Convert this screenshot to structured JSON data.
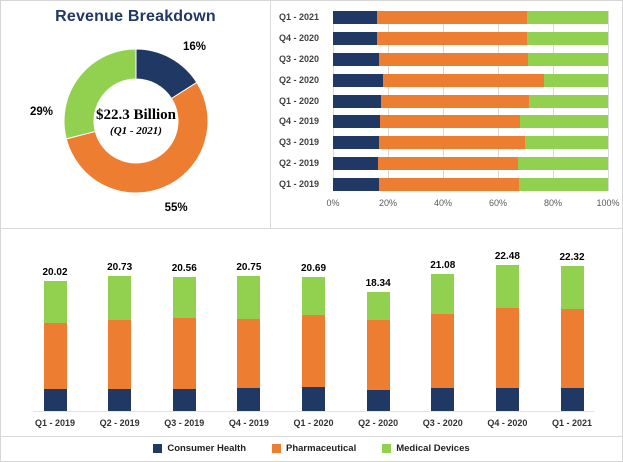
{
  "palette": {
    "consumer_health": "#1F3864",
    "pharmaceutical": "#ED7D31",
    "medical_devices": "#92D050",
    "title_color": "#1F3864",
    "grid_color": "#d9d9d9"
  },
  "chart_data": [
    {
      "type": "pie",
      "subtype": "donut",
      "title": "Revenue Breakdown",
      "center_label": "$22.3 Billion",
      "center_sublabel": "(Q1 - 2021)",
      "labels": [
        "Consumer Health",
        "Pharmaceutical",
        "Medical Devices"
      ],
      "values": [
        16,
        55,
        29
      ],
      "slice_labels": [
        "16%",
        "55%",
        "29%"
      ],
      "colors": [
        "#1F3864",
        "#ED7D31",
        "#92D050"
      ],
      "label_angles_deg": [
        38,
        155,
        276
      ]
    },
    {
      "type": "bar",
      "orientation": "horizontal",
      "stacking": "percent",
      "categories": [
        "Q1 - 2021",
        "Q4 - 2020",
        "Q3 - 2020",
        "Q2 - 2020",
        "Q1 - 2020",
        "Q4 - 2019",
        "Q3 - 2019",
        "Q2 - 2019",
        "Q1 - 2019"
      ],
      "series": [
        {
          "name": "Consumer Health",
          "color": "#1F3864",
          "values": [
            15.9,
            15.9,
            16.7,
            18.0,
            17.5,
            17.2,
            16.8,
            16.5,
            16.6
          ]
        },
        {
          "name": "Pharmaceutical",
          "color": "#ED7D31",
          "values": [
            54.6,
            54.6,
            54.2,
            58.6,
            53.8,
            50.8,
            52.9,
            50.8,
            51.1
          ]
        },
        {
          "name": "Medical Devices",
          "color": "#92D050",
          "values": [
            29.5,
            29.5,
            29.1,
            23.4,
            28.7,
            32.0,
            30.3,
            32.7,
            32.3
          ]
        }
      ],
      "x_ticks": [
        "0%",
        "20%",
        "40%",
        "60%",
        "80%",
        "100%"
      ],
      "x_tick_values": [
        0,
        20,
        40,
        60,
        80,
        100
      ],
      "xlim": [
        0,
        100
      ],
      "grid": true,
      "legend_position": "none"
    },
    {
      "type": "bar",
      "orientation": "vertical",
      "stacking": "stacked",
      "categories": [
        "Q1 - 2019",
        "Q2 - 2019",
        "Q3 - 2019",
        "Q4 - 2019",
        "Q1 - 2020",
        "Q2 - 2020",
        "Q3 - 2020",
        "Q4 - 2020",
        "Q1 - 2021"
      ],
      "totals": [
        20.02,
        20.73,
        20.56,
        20.75,
        20.69,
        18.34,
        21.08,
        22.48,
        22.32
      ],
      "series": [
        {
          "name": "Consumer Health",
          "color": "#1F3864",
          "values": [
            3.32,
            3.42,
            3.46,
            3.57,
            3.63,
            3.3,
            3.51,
            3.57,
            3.54
          ]
        },
        {
          "name": "Pharmaceutical",
          "color": "#ED7D31",
          "values": [
            10.24,
            10.53,
            10.88,
            10.55,
            11.13,
            10.75,
            11.42,
            12.27,
            12.19
          ]
        },
        {
          "name": "Medical Devices",
          "color": "#92D050",
          "values": [
            6.46,
            6.78,
            6.22,
            6.63,
            5.93,
            4.29,
            6.15,
            6.64,
            6.59
          ]
        }
      ],
      "ylim": [
        0,
        24
      ],
      "grid": false,
      "legend": [
        "Consumer Health",
        "Pharmaceutical",
        "Medical Devices"
      ],
      "legend_position": "bottom"
    }
  ]
}
